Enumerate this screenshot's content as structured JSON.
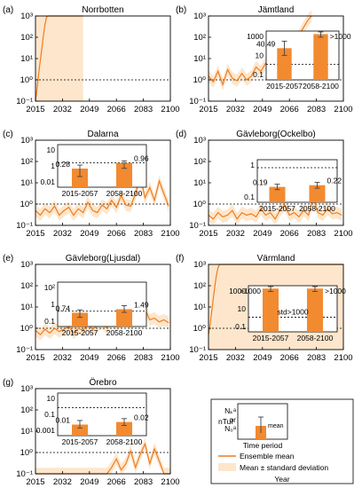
{
  "chart_data": [
    {
      "type": "line",
      "panel_label": "(a)",
      "title": "Norrbotten",
      "x_ticks": [
        "2015",
        "2032",
        "2049",
        "2066",
        "2083",
        "2100"
      ],
      "y_ticks": [
        "10⁻¹",
        "10⁰",
        "10¹",
        "10²",
        "10³"
      ],
      "ylim": [
        0.1,
        1000
      ],
      "yscale": "log",
      "threshold": 1,
      "series": [
        {
          "name": "Ensemble mean",
          "x": [
            2015,
            2016,
            2017,
            2018,
            2019,
            2020,
            2021,
            2022,
            2023,
            2025,
            2030,
            2035,
            2040,
            2045
          ],
          "values": [
            0.1,
            0.4,
            2,
            8,
            30,
            120,
            400,
            900,
            1000,
            1000,
            1000,
            1000,
            1000,
            1000
          ]
        }
      ],
      "band_x": [
        2015,
        2045
      ]
    },
    {
      "type": "line",
      "panel_label": "(b)",
      "title": "Jämtland",
      "x_ticks": [
        "2015",
        "2032",
        "2049",
        "2066",
        "2083",
        "2100"
      ],
      "y_ticks": [
        "10⁻¹",
        "10⁰",
        "10¹",
        "10²",
        "10³"
      ],
      "ylim": [
        0.1,
        1000
      ],
      "yscale": "log",
      "threshold": 1,
      "series": [
        {
          "name": "Ensemble mean",
          "x": [
            2015,
            2018,
            2021,
            2024,
            2027,
            2030,
            2033,
            2036,
            2039,
            2042,
            2045,
            2048,
            2051,
            2054,
            2057,
            2060,
            2063,
            2066,
            2069,
            2072,
            2075,
            2078,
            2080
          ],
          "values": [
            1.5,
            0.8,
            2.5,
            0.6,
            3,
            1.2,
            0.9,
            2,
            1,
            1.5,
            4,
            2.5,
            6,
            3,
            10,
            6,
            20,
            30,
            60,
            120,
            300,
            700,
            1000
          ]
        }
      ],
      "inset": {
        "ylabels": [
          "1000",
          "10",
          "0.1"
        ],
        "periods": [
          "2015-2057",
          "2058-2100"
        ],
        "means": [
          40.49,
          1000
        ],
        "mean_labels": [
          "40.49",
          ">1000"
        ],
        "std": [
          [
            8,
            200
          ],
          [
            500,
            2000
          ]
        ],
        "ylim": [
          0.03,
          2000
        ],
        "threshold": 1
      }
    },
    {
      "type": "line",
      "panel_label": "(c)",
      "title": "Dalarna",
      "x_ticks": [
        "2015",
        "2032",
        "2049",
        "2066",
        "2083",
        "2100"
      ],
      "y_ticks": [
        "10⁻¹",
        "10⁰",
        "10¹",
        "10²",
        "10³"
      ],
      "ylim": [
        0.1,
        1000
      ],
      "yscale": "log",
      "threshold": 1,
      "series": [
        {
          "name": "Ensemble mean",
          "x": [
            2015,
            2018,
            2021,
            2024,
            2027,
            2030,
            2033,
            2036,
            2039,
            2042,
            2045,
            2048,
            2051,
            2054,
            2057,
            2060,
            2063,
            2066,
            2069,
            2072,
            2075,
            2078,
            2081,
            2084,
            2087,
            2090,
            2093,
            2096,
            2099
          ],
          "values": [
            0.5,
            0.3,
            0.6,
            0.4,
            0.8,
            0.3,
            0.5,
            0.7,
            0.3,
            0.6,
            0.4,
            1.2,
            0.5,
            0.4,
            0.9,
            0.6,
            1.5,
            0.7,
            2.5,
            0.9,
            0.8,
            3,
            20,
            2,
            6,
            1.5,
            12,
            3,
            0.8
          ]
        }
      ],
      "inset": {
        "ylabels": [
          "10",
          "1",
          "0.01"
        ],
        "periods": [
          "2015-2057",
          "2058-2100"
        ],
        "means": [
          0.28,
          0.96
        ],
        "mean_labels": [
          "0.28",
          "0.96"
        ],
        "std": [
          [
            0.05,
            0.6
          ],
          [
            0.3,
            1.5
          ]
        ],
        "ylim": [
          0.005,
          50
        ],
        "threshold": 1
      }
    },
    {
      "type": "line",
      "panel_label": "(d)",
      "title": "Gävleborg(Ockelbo)",
      "x_ticks": [
        "2015",
        "2032",
        "2049",
        "2066",
        "2083",
        "2100"
      ],
      "y_ticks": [
        "10⁻¹",
        "10⁰",
        "10¹",
        "10²",
        "10³"
      ],
      "ylim": [
        0.1,
        1000
      ],
      "yscale": "log",
      "threshold": 1,
      "series": [
        {
          "name": "Ensemble mean",
          "x": [
            2015,
            2018,
            2021,
            2024,
            2027,
            2030,
            2033,
            2036,
            2039,
            2042,
            2045,
            2048,
            2051,
            2054,
            2057,
            2060,
            2063,
            2066,
            2069,
            2072,
            2075,
            2078,
            2081,
            2084,
            2087,
            2090,
            2093,
            2096,
            2099
          ],
          "values": [
            0.3,
            0.2,
            0.4,
            0.25,
            0.3,
            0.5,
            0.2,
            0.4,
            0.3,
            0.35,
            0.25,
            0.6,
            0.3,
            0.4,
            0.2,
            0.5,
            0.9,
            0.3,
            0.4,
            0.25,
            0.5,
            0.3,
            2,
            0.4,
            0.3,
            0.6,
            0.35,
            0.4,
            0.3
          ]
        }
      ],
      "inset": {
        "ylabels": [
          "1",
          "0.1"
        ],
        "periods": [
          "2015-2057",
          "2058-2100"
        ],
        "means": [
          0.19,
          0.22
        ],
        "mean_labels": [
          "0.19",
          "0.22"
        ],
        "std": [
          [
            0.15,
            0.24
          ],
          [
            0.17,
            0.28
          ]
        ],
        "ylim": [
          0.05,
          2
        ],
        "threshold": 1
      }
    },
    {
      "type": "line",
      "panel_label": "(e)",
      "title": "Gävleborg(Ljusdal)",
      "x_ticks": [
        "2015",
        "2032",
        "2049",
        "2066",
        "2083",
        "2100"
      ],
      "y_ticks": [
        "10⁻¹",
        "10⁰",
        "10¹",
        "10²",
        "10³"
      ],
      "ylim": [
        0.1,
        1000
      ],
      "yscale": "log",
      "threshold": 1,
      "series": [
        {
          "name": "Ensemble mean",
          "x": [
            2015,
            2018,
            2021,
            2024,
            2027,
            2030,
            2033,
            2036,
            2039,
            2042,
            2045,
            2048,
            2051,
            2054,
            2057,
            2060,
            2063,
            2066,
            2069,
            2072,
            2075,
            2078,
            2081,
            2084,
            2087,
            2090,
            2093,
            2096,
            2099
          ],
          "values": [
            0.8,
            0.5,
            0.9,
            0.6,
            1,
            0.7,
            0.9,
            1.2,
            0.6,
            1,
            0.8,
            1.5,
            0.9,
            1.3,
            1.8,
            1,
            2.5,
            1.4,
            2,
            3,
            1.5,
            2.5,
            4,
            8,
            2.5,
            3,
            2,
            2.5,
            1.8
          ]
        }
      ],
      "inset": {
        "ylabels": [
          "10²",
          "1",
          "0.1"
        ],
        "periods": [
          "2015-2057",
          "2058-2100"
        ],
        "means": [
          0.74,
          1.49
        ],
        "mean_labels": [
          "0.74",
          "1.49"
        ],
        "std": [
          [
            0.3,
            1.3
          ],
          [
            0.8,
            3
          ]
        ],
        "ylim": [
          0.05,
          300
        ],
        "threshold": 1
      }
    },
    {
      "type": "line",
      "panel_label": "(f)",
      "title": "Värmland",
      "x_ticks": [
        "2015",
        "2032",
        "2049",
        "2066",
        "2083",
        "2100"
      ],
      "y_ticks": [
        "10⁻¹",
        "10⁰",
        "10¹",
        "10²",
        "10³"
      ],
      "ylim": [
        0.1,
        1000
      ],
      "yscale": "log",
      "threshold": 1,
      "series": [
        {
          "name": "Ensemble mean",
          "x": [
            2015,
            2016,
            2017,
            2018,
            2019,
            2020,
            2021,
            2022,
            2023,
            2025,
            2040,
            2060,
            2080,
            2100
          ],
          "values": [
            0.5,
            1.5,
            6,
            25,
            100,
            300,
            700,
            1000,
            1000,
            1000,
            1000,
            1000,
            1000,
            1000
          ]
        }
      ],
      "band_x": [
        2015,
        2100
      ],
      "inset": {
        "ylabels": [
          "1000",
          "10",
          "0.1"
        ],
        "periods": [
          "2015-2057",
          "2058-2100"
        ],
        "means": [
          1000,
          1000
        ],
        "mean_labels": [
          ">1000",
          ">1000"
        ],
        "std": [
          [
            500,
            2000
          ],
          [
            500,
            2000
          ]
        ],
        "ylim": [
          0.03,
          2000
        ],
        "threshold": 1,
        "note": "std>1000"
      }
    },
    {
      "type": "line",
      "panel_label": "(g)",
      "title": "Örebro",
      "x_ticks": [
        "2015",
        "2032",
        "2049",
        "2066",
        "2083",
        "2100"
      ],
      "y_ticks": [
        "10⁻¹",
        "10⁰",
        "10¹",
        "10²",
        "10³"
      ],
      "ylim": [
        0.1,
        1000
      ],
      "yscale": "log",
      "threshold": 1,
      "series": [
        {
          "name": "Ensemble mean",
          "x": [
            2015,
            2020,
            2025,
            2030,
            2035,
            2040,
            2045,
            2050,
            2055,
            2060,
            2063,
            2066,
            2069,
            2072,
            2075,
            2078,
            2081,
            2084,
            2087,
            2090,
            2093,
            2096,
            2100
          ],
          "values": [
            0.1,
            0.1,
            0.1,
            0.1,
            0.1,
            0.1,
            0.1,
            0.1,
            0.1,
            0.1,
            0.2,
            0.5,
            0.15,
            0.3,
            1.2,
            0.2,
            0.8,
            2.5,
            0.3,
            1.5,
            0.4,
            0.1,
            0.1
          ]
        }
      ],
      "inset": {
        "ylabels": [
          "10",
          "0.1",
          "0.001"
        ],
        "periods": [
          "2015-2057",
          "2058-2100"
        ],
        "means": [
          0.01,
          0.02
        ],
        "mean_labels": [
          "0.01",
          "0.02"
        ],
        "std": [
          [
            0.004,
            0.03
          ],
          [
            0.008,
            0.05
          ]
        ],
        "ylim": [
          0.0005,
          50
        ],
        "threshold": 1
      }
    }
  ],
  "legend": {
    "ylabel_top": "Nₖᵃ",
    "ylabel_or": "or",
    "ylabel_bottom": "N₀ᵃ",
    "mean_label": "mean",
    "side_label": "nTul",
    "xlabel": "Time period",
    "line_label": "Ensemble mean",
    "band_label": "Mean ± standard deviation",
    "bottom_label": "Year"
  },
  "colors": {
    "line": "#f07c1e",
    "band": "#fde6cc",
    "bar": "#f28a30"
  }
}
